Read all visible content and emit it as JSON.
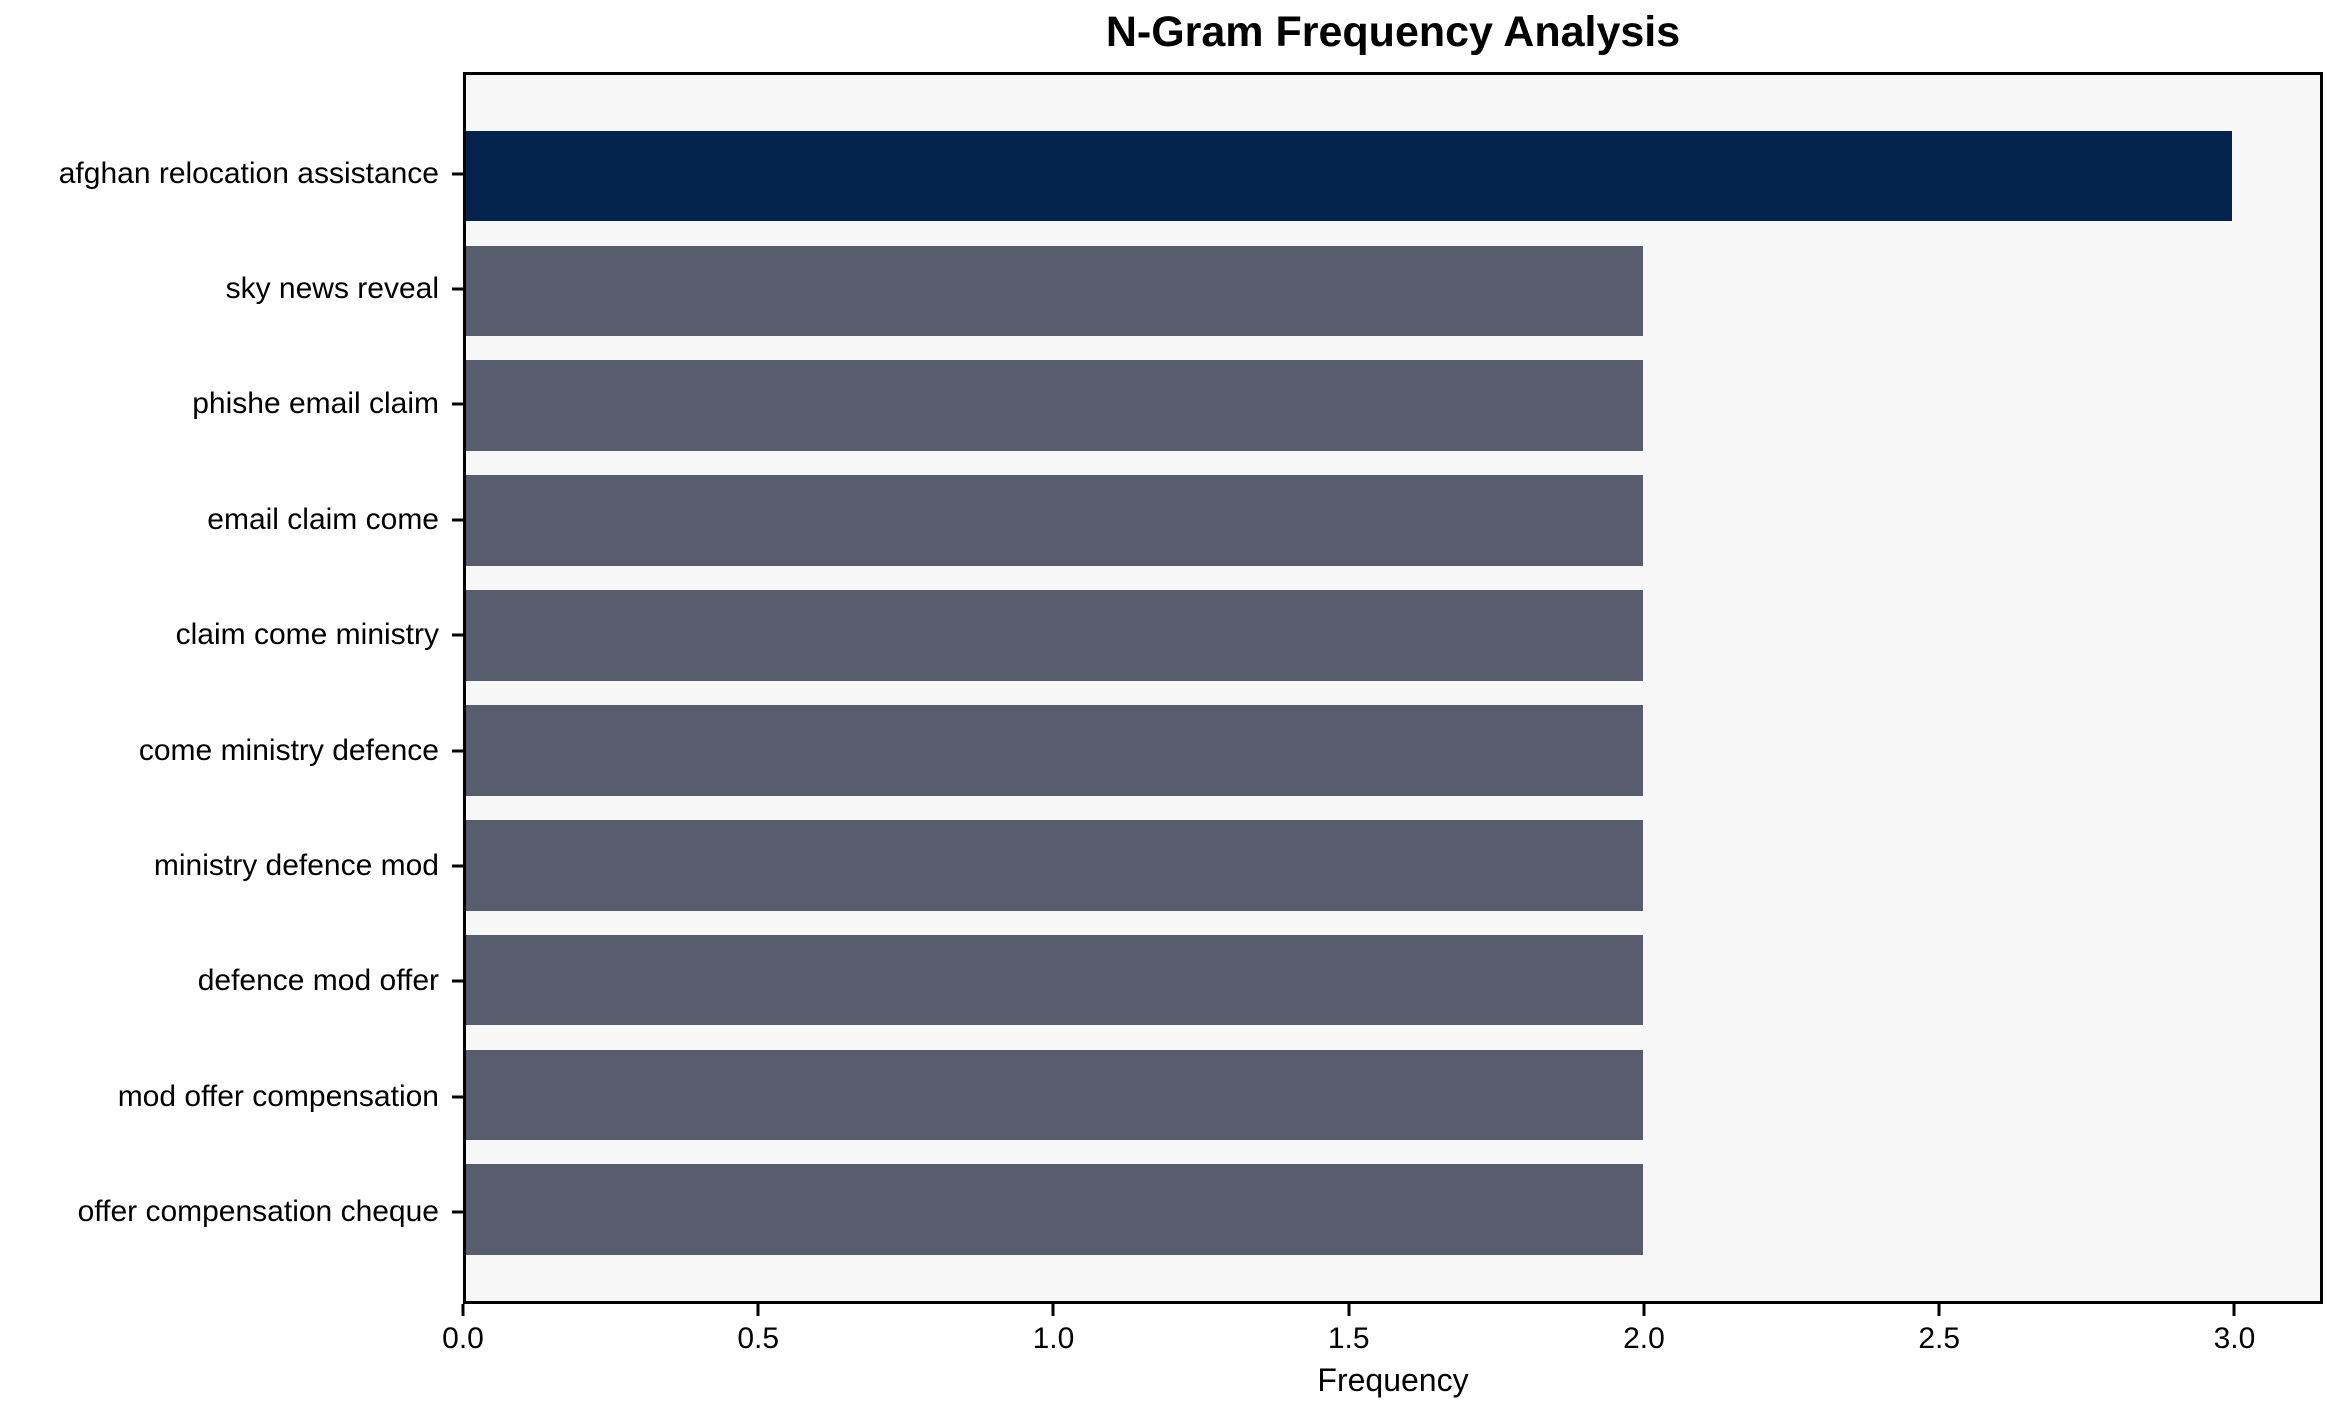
{
  "chart_data": {
    "type": "bar",
    "orientation": "horizontal",
    "title": "N-Gram Frequency Analysis",
    "xlabel": "Frequency",
    "ylabel": "",
    "categories": [
      "afghan relocation assistance",
      "sky news reveal",
      "phishe email claim",
      "email claim come",
      "claim come ministry",
      "come ministry defence",
      "ministry defence mod",
      "defence mod offer",
      "mod offer compensation",
      "offer compensation cheque"
    ],
    "values": [
      3,
      2,
      2,
      2,
      2,
      2,
      2,
      2,
      2,
      2
    ],
    "bar_colors": [
      "#03234C",
      "#575D6D",
      "#575D6D",
      "#575D6D",
      "#575D6D",
      "#575D6D",
      "#575D6D",
      "#575D6D",
      "#575D6D",
      "#575D6D"
    ],
    "xlim": [
      0,
      3.15
    ],
    "x_tick_values": [
      0,
      0.5,
      1,
      1.5,
      2,
      2.5,
      3
    ],
    "x_tick_labels": [
      "0.0",
      "0.5",
      "1.0",
      "1.5",
      "2.0",
      "2.5",
      "3.0"
    ],
    "grid": false,
    "legend": "none",
    "colors": {
      "highlight_bar": "#03234C",
      "other_bars": "#575D6D",
      "plot_background": "#F7F7F8",
      "page_background": "#FFFFFF",
      "spine": "#000000",
      "text": "#000000"
    }
  }
}
